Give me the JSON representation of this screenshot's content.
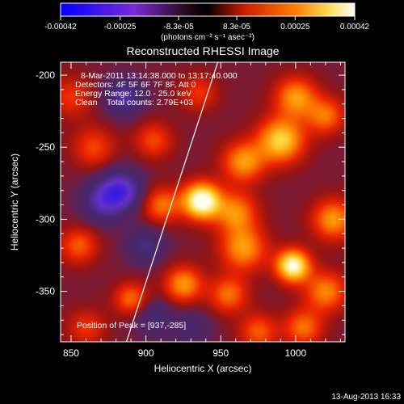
{
  "colorbar": {
    "tick_labels": [
      "-0.00042",
      "-0.00025",
      "-8.3e-05",
      "8.3e-05",
      "0.00025",
      "0.00042"
    ],
    "tick_values": [
      -0.00042,
      -0.00025,
      -8.3e-05,
      8.3e-05,
      0.00025,
      0.00042
    ],
    "range": [
      -0.00042,
      0.00042
    ],
    "units_label": "(photons cm⁻² s⁻¹ asec⁻²)"
  },
  "footer_timestamp": "13-Aug-2013 16:33",
  "chart_data": {
    "type": "heatmap",
    "title": "Reconstructed RHESSI Image",
    "xlabel": "Heliocentric X (arcsec)",
    "ylabel": "Heliocentric Y (arcsec)",
    "xlim": [
      843,
      1033
    ],
    "ylim": [
      -385,
      -191
    ],
    "x_ticks": [
      850,
      900,
      950,
      1000
    ],
    "y_ticks": [
      -200,
      -250,
      -300,
      -350
    ],
    "x_tick_labels": [
      "850",
      "900",
      "950",
      "1000"
    ],
    "y_tick_labels": [
      "-200",
      "-250",
      "-300",
      "-350"
    ],
    "annotations": [
      "8-Mar-2011 13:14:38.000 to 13:17:40.000",
      "Detectors: 4F 5F 6F 7F 8F, Att 0",
      "Energy Range: 12.0 - 25.0 keV",
      "Clean    Total counts: 2.79E+03"
    ],
    "peak_label": "Position of Peak = [937,-285]",
    "peak": [
      937,
      -285
    ],
    "limb_line": [
      [
        887,
        -385
      ],
      [
        948,
        -191
      ]
    ],
    "sources": [
      {
        "x": 937,
        "y": -287,
        "amp": 1.0,
        "sigma": 9
      },
      {
        "x": 998,
        "y": -332,
        "amp": 0.92,
        "sigma": 8
      },
      {
        "x": 965,
        "y": -320,
        "amp": 0.55,
        "sigma": 11
      },
      {
        "x": 990,
        "y": -245,
        "amp": 0.72,
        "sigma": 11
      },
      {
        "x": 1000,
        "y": -215,
        "amp": 0.55,
        "sigma": 10
      },
      {
        "x": 965,
        "y": -260,
        "amp": 0.55,
        "sigma": 10
      },
      {
        "x": 960,
        "y": -295,
        "amp": 0.5,
        "sigma": 10
      },
      {
        "x": 925,
        "y": -345,
        "amp": 0.55,
        "sigma": 9
      },
      {
        "x": 955,
        "y": -352,
        "amp": 0.45,
        "sigma": 9
      },
      {
        "x": 1025,
        "y": -300,
        "amp": 0.55,
        "sigma": 10
      },
      {
        "x": 1020,
        "y": -350,
        "amp": 0.5,
        "sigma": 10
      },
      {
        "x": 1005,
        "y": -375,
        "amp": 0.45,
        "sigma": 9
      },
      {
        "x": 975,
        "y": -378,
        "amp": 0.4,
        "sigma": 9
      },
      {
        "x": 910,
        "y": -290,
        "amp": 0.45,
        "sigma": 9
      },
      {
        "x": 905,
        "y": -245,
        "amp": 0.35,
        "sigma": 9
      },
      {
        "x": 865,
        "y": -250,
        "amp": 0.35,
        "sigma": 10
      },
      {
        "x": 850,
        "y": -215,
        "amp": 0.3,
        "sigma": 10
      },
      {
        "x": 890,
        "y": -355,
        "amp": 0.45,
        "sigma": 8
      },
      {
        "x": 855,
        "y": -318,
        "amp": 0.4,
        "sigma": 9
      },
      {
        "x": 860,
        "y": -375,
        "amp": 0.3,
        "sigma": 9
      },
      {
        "x": 1020,
        "y": -228,
        "amp": 0.45,
        "sigma": 9
      },
      {
        "x": 935,
        "y": -212,
        "amp": 0.3,
        "sigma": 9
      },
      {
        "x": 883,
        "y": -280,
        "amp": -0.65,
        "sigma": 10
      },
      {
        "x": 885,
        "y": -215,
        "amp": -0.45,
        "sigma": 9
      },
      {
        "x": 870,
        "y": -288,
        "amp": -0.4,
        "sigma": 10
      },
      {
        "x": 900,
        "y": -318,
        "amp": -0.35,
        "sigma": 9
      },
      {
        "x": 905,
        "y": -368,
        "amp": -0.3,
        "sigma": 9
      },
      {
        "x": 930,
        "y": -375,
        "amp": -0.25,
        "sigma": 9
      }
    ]
  }
}
